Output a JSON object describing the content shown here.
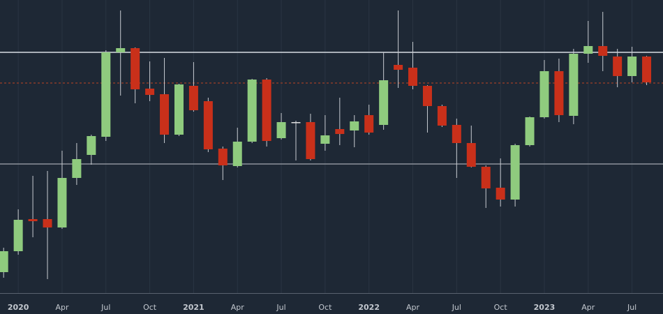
{
  "chart_data": {
    "type": "candlestick",
    "categories": [
      null,
      "2020",
      null,
      null,
      "Apr",
      null,
      null,
      "Jul",
      null,
      null,
      "Oct",
      null,
      null,
      "2021",
      null,
      null,
      "Apr",
      null,
      null,
      "Jul",
      null,
      null,
      "Oct",
      null,
      null,
      "2022",
      null,
      null,
      "Apr",
      null,
      null,
      "Jul",
      null,
      null,
      "Oct",
      null,
      null,
      "2023",
      null,
      null,
      "Apr",
      null,
      null,
      "Jul",
      null
    ],
    "open": [
      30,
      60,
      106,
      106,
      94,
      165,
      198,
      224,
      345,
      351,
      293,
      285,
      227,
      297,
      275,
      207,
      182,
      217,
      306,
      222,
      245,
      245,
      214,
      235,
      233,
      255,
      241,
      327,
      323,
      297,
      268,
      241,
      215,
      181,
      151,
      134,
      212,
      252,
      318,
      254,
      343,
      354,
      339,
      311,
      339
    ],
    "high": [
      65,
      120,
      168,
      175,
      204,
      215,
      227,
      348,
      405,
      352,
      332,
      337,
      300,
      331,
      280,
      210,
      237,
      307,
      308,
      258,
      247,
      257,
      255,
      280,
      255,
      270,
      345,
      405,
      360,
      298,
      270,
      250,
      240,
      183,
      193,
      214,
      253,
      334,
      336,
      350,
      390,
      403,
      350,
      353,
      340
    ],
    "low": [
      22,
      55,
      80,
      20,
      92,
      155,
      184,
      218,
      283,
      272,
      275,
      215,
      225,
      260,
      202,
      162,
      180,
      215,
      210,
      220,
      190,
      190,
      204,
      212,
      209,
      227,
      234,
      294,
      292,
      230,
      238,
      165,
      180,
      122,
      124,
      124,
      210,
      250,
      245,
      242,
      330,
      318,
      295,
      302,
      298
    ],
    "close": [
      60,
      105,
      103,
      94,
      165,
      192,
      225,
      345,
      351,
      292,
      284,
      227,
      299,
      262,
      206,
      183,
      217,
      306,
      218,
      245,
      245,
      192,
      226,
      228,
      246,
      230,
      305,
      320,
      297,
      268,
      240,
      215,
      181,
      150,
      134,
      212,
      252,
      318,
      255,
      343,
      354,
      340,
      311,
      339,
      302
    ],
    "ylim": [
      0,
      420
    ],
    "up_color": "#8fcb7e",
    "down_color": "#c9301a",
    "hlines": [
      {
        "value": 345,
        "color": "#d8dde3",
        "style": "solid"
      },
      {
        "value": 185,
        "color": "#8d939b",
        "style": "solid"
      },
      {
        "value": 301,
        "color": "#8a3a2a",
        "style": "dashed"
      }
    ],
    "grid": true
  }
}
